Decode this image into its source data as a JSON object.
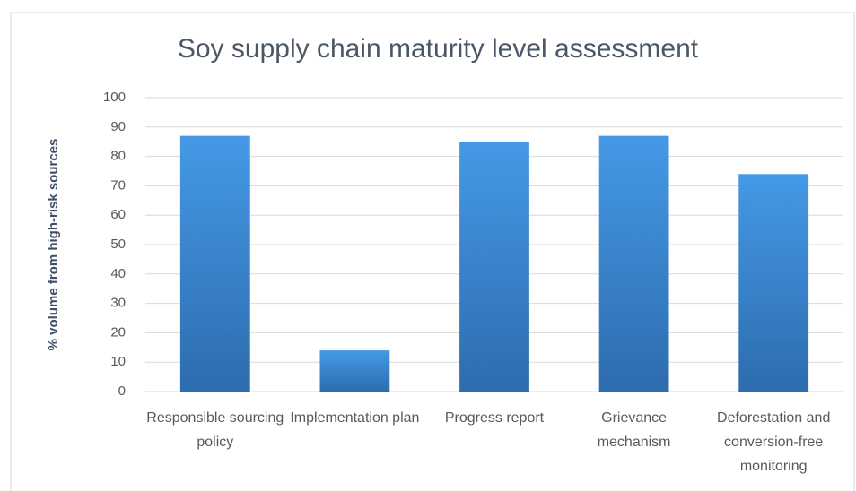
{
  "chart_data": {
    "type": "bar",
    "title": "Soy supply chain maturity level assessment",
    "y_label": "% volume from high-risk sources",
    "categories": [
      "Responsible sourcing policy",
      "Implementation plan",
      "Progress report",
      "Grievance mechanism",
      "Deforestation and conversion-free monitoring"
    ],
    "values": [
      87,
      14,
      85,
      87,
      74
    ],
    "color": "#3a86d4",
    "ylim": [
      0,
      100
    ],
    "yticks": [
      0,
      10,
      20,
      30,
      40,
      50,
      60,
      70,
      80,
      90,
      100
    ],
    "grid": true
  }
}
